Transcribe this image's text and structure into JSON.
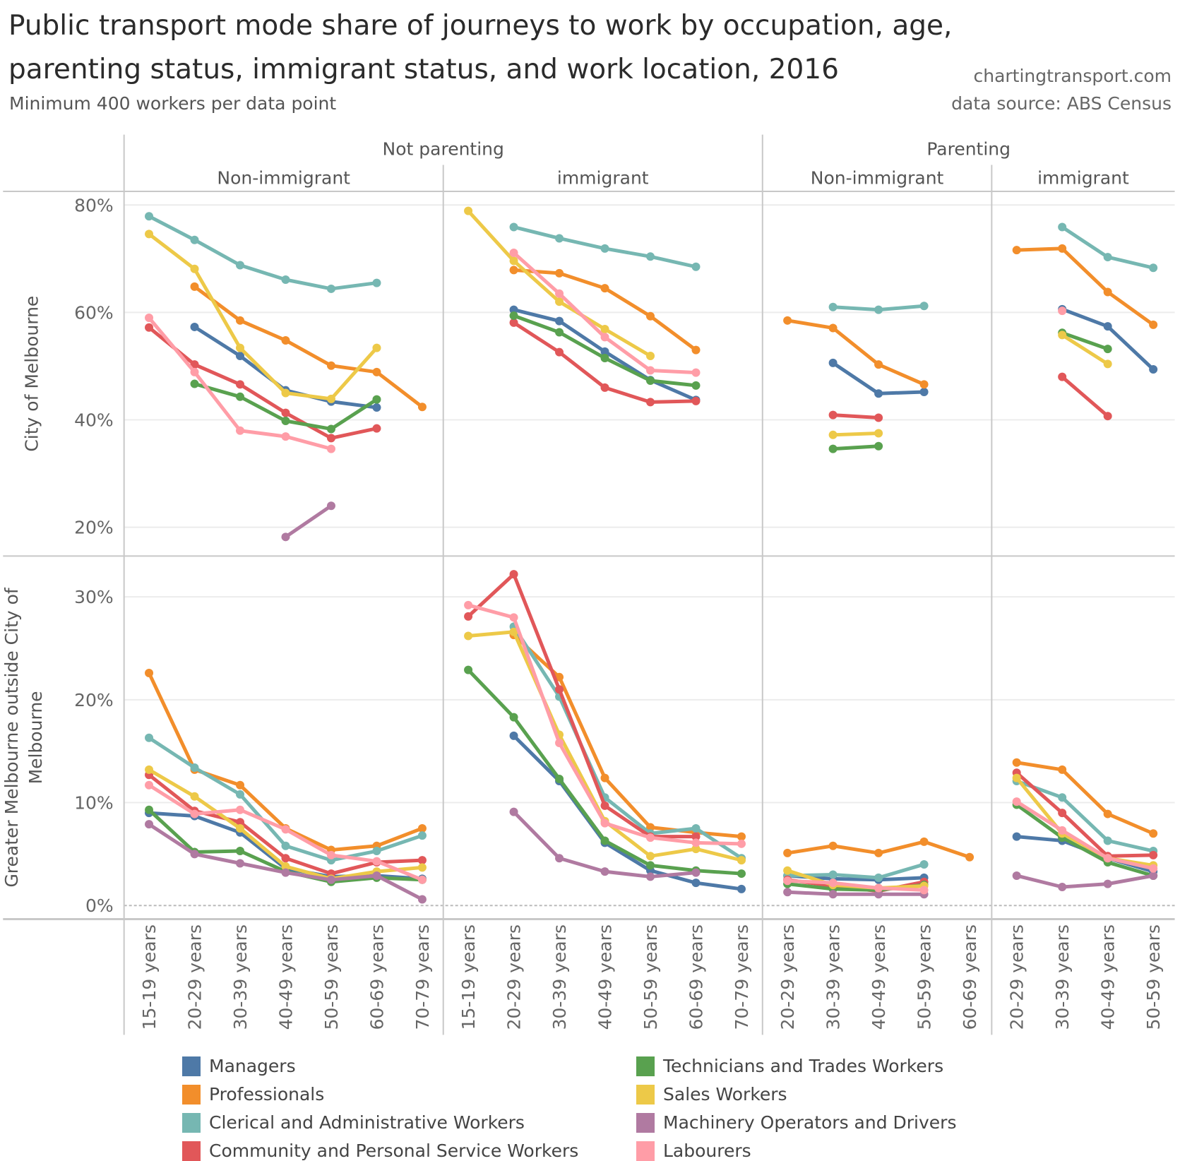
{
  "header": {
    "title": "Public transport mode share of journeys to work by occupation, age, parenting status, immigrant status, and work location, 2016",
    "subtitle": "Minimum 400 workers per data point",
    "credit_site": "chartingtransport.com",
    "credit_source": "data source: ABS Census"
  },
  "chart_data": {
    "type": "line",
    "title": "Public transport mode share of journeys to work by occupation, age, parenting status, immigrant status, and work location, 2016",
    "subtitle": "Minimum 400 workers per data point",
    "column_groups": [
      {
        "label": "Not parenting",
        "subgroups": [
          "Non-immigrant",
          "immigrant"
        ]
      },
      {
        "label": "Parenting",
        "subgroups": [
          "Non-immigrant",
          "immigrant"
        ]
      }
    ],
    "rows": [
      {
        "label": "City of Melbourne",
        "ylim": [
          15,
          82
        ],
        "ticks": [
          20,
          40,
          60,
          80
        ],
        "tick_labels": [
          "20%",
          "40%",
          "60%",
          "80%"
        ]
      },
      {
        "label": "Greater Melbourne outside City of Melbourne",
        "ylim": [
          -0.5,
          33
        ],
        "ticks": [
          0,
          10,
          20,
          30
        ],
        "tick_labels": [
          "0%",
          "10%",
          "20%",
          "30%"
        ]
      }
    ],
    "panel_categories": [
      [
        "15-19 years",
        "20-29 years",
        "30-39 years",
        "40-49 years",
        "50-59 years",
        "60-69 years",
        "70-79 years"
      ],
      [
        "15-19 years",
        "20-29 years",
        "30-39 years",
        "40-49 years",
        "50-59 years",
        "60-69 years",
        "70-79 years"
      ],
      [
        "20-29 years",
        "30-39 years",
        "40-49 years",
        "50-59 years",
        "60-69 years"
      ],
      [
        "20-29 years",
        "30-39 years",
        "40-49 years",
        "50-59 years"
      ]
    ],
    "series": [
      {
        "name": "Managers",
        "color": "#4e79a7"
      },
      {
        "name": "Professionals",
        "color": "#f28e2b"
      },
      {
        "name": "Clerical and Administrative Workers",
        "color": "#76b7b2"
      },
      {
        "name": "Community and Personal Service Workers",
        "color": "#e15759"
      },
      {
        "name": "Technicians and Trades Workers",
        "color": "#59a14f"
      },
      {
        "name": "Sales Workers",
        "color": "#edc948"
      },
      {
        "name": "Machinery Operators and Drivers",
        "color": "#b07aa1"
      },
      {
        "name": "Labourers",
        "color": "#ff9da7"
      }
    ],
    "values": {
      "row0": [
        {
          "Managers": [
            null,
            57.3,
            51.9,
            45.5,
            43.4,
            42.3,
            null
          ],
          "Professionals": [
            null,
            64.8,
            58.5,
            54.8,
            50.1,
            48.9,
            42.4
          ],
          "Clerical and Administrative Workers": [
            77.9,
            73.5,
            68.8,
            66.1,
            64.4,
            65.5,
            null
          ],
          "Community and Personal Service Workers": [
            57.2,
            50.3,
            46.6,
            41.3,
            36.6,
            38.4,
            null
          ],
          "Technicians and Trades Workers": [
            null,
            46.7,
            44.3,
            39.8,
            38.3,
            43.8,
            null
          ],
          "Sales Workers": [
            74.6,
            68.1,
            53.4,
            45.0,
            43.9,
            53.4,
            null
          ],
          "Machinery Operators and Drivers": [
            null,
            null,
            null,
            18.2,
            24.0,
            null,
            null
          ],
          "Labourers": [
            59.0,
            48.9,
            38.0,
            36.9,
            34.6,
            null,
            null
          ]
        },
        {
          "Managers": [
            null,
            60.5,
            58.4,
            52.7,
            47.4,
            43.7,
            null
          ],
          "Professionals": [
            null,
            67.9,
            67.3,
            64.5,
            59.3,
            53.0,
            null
          ],
          "Clerical and Administrative Workers": [
            null,
            75.9,
            73.8,
            71.9,
            70.4,
            68.5,
            null
          ],
          "Community and Personal Service Workers": [
            null,
            58.1,
            52.6,
            46.0,
            43.3,
            43.5,
            null
          ],
          "Technicians and Trades Workers": [
            null,
            59.4,
            56.3,
            51.5,
            47.3,
            46.4,
            null
          ],
          "Sales Workers": [
            78.9,
            69.6,
            62.0,
            56.9,
            51.9,
            null,
            null
          ],
          "Machinery Operators and Drivers": [
            null,
            null,
            null,
            null,
            null,
            null,
            null
          ],
          "Labourers": [
            null,
            71.1,
            63.5,
            55.4,
            49.2,
            48.8,
            null
          ]
        },
        {
          "Managers": [
            null,
            50.6,
            44.9,
            45.2,
            null
          ],
          "Professionals": [
            58.5,
            57.1,
            50.3,
            46.6,
            null
          ],
          "Clerical and Administrative Workers": [
            null,
            61.0,
            60.5,
            61.2,
            null
          ],
          "Community and Personal Service Workers": [
            null,
            40.9,
            40.4,
            null,
            null
          ],
          "Technicians and Trades Workers": [
            null,
            34.6,
            35.1,
            null,
            null
          ],
          "Sales Workers": [
            null,
            37.2,
            37.5,
            null,
            null
          ],
          "Machinery Operators and Drivers": [
            null,
            null,
            null,
            null,
            null
          ],
          "Labourers": [
            null,
            null,
            null,
            null,
            null
          ]
        },
        {
          "Managers": [
            null,
            60.6,
            57.4,
            49.4
          ],
          "Professionals": [
            71.6,
            71.9,
            63.8,
            57.7
          ],
          "Clerical and Administrative Workers": [
            null,
            75.9,
            70.3,
            68.3
          ],
          "Community and Personal Service Workers": [
            null,
            48.0,
            40.7,
            null
          ],
          "Technicians and Trades Workers": [
            null,
            56.2,
            53.2,
            null
          ],
          "Sales Workers": [
            null,
            55.8,
            50.4,
            null
          ],
          "Machinery Operators and Drivers": [
            null,
            null,
            null,
            null
          ],
          "Labourers": [
            null,
            60.3,
            null,
            null
          ]
        }
      ],
      "row1": [
        {
          "Managers": [
            9.0,
            8.7,
            7.1,
            3.6,
            2.8,
            2.9,
            2.6
          ],
          "Professionals": [
            22.6,
            13.2,
            11.7,
            7.5,
            5.4,
            5.8,
            7.5
          ],
          "Clerical and Administrative Workers": [
            16.3,
            13.4,
            10.8,
            5.8,
            4.4,
            5.3,
            6.8
          ],
          "Community and Personal Service Workers": [
            12.7,
            9.2,
            8.1,
            4.6,
            3.1,
            4.2,
            4.4
          ],
          "Technicians and Trades Workers": [
            9.3,
            5.2,
            5.3,
            3.3,
            2.3,
            2.7,
            2.5
          ],
          "Sales Workers": [
            13.2,
            10.6,
            7.5,
            3.8,
            2.6,
            3.3,
            3.7
          ],
          "Machinery Operators and Drivers": [
            7.9,
            5.0,
            4.1,
            3.2,
            2.5,
            2.9,
            0.6
          ],
          "Labourers": [
            11.7,
            8.9,
            9.3,
            7.4,
            4.9,
            4.3,
            2.5
          ]
        },
        {
          "Managers": [
            null,
            16.5,
            12.1,
            6.1,
            3.4,
            2.2,
            1.6
          ],
          "Professionals": [
            null,
            26.3,
            22.2,
            12.4,
            7.6,
            7.1,
            6.7
          ],
          "Clerical and Administrative Workers": [
            null,
            27.1,
            20.3,
            10.5,
            7.0,
            7.5,
            4.6
          ],
          "Community and Personal Service Workers": [
            28.1,
            32.2,
            21.0,
            9.7,
            6.7,
            6.7,
            null
          ],
          "Technicians and Trades Workers": [
            22.9,
            18.3,
            12.3,
            6.3,
            3.9,
            3.4,
            3.1
          ],
          "Sales Workers": [
            26.2,
            26.6,
            16.6,
            8.2,
            4.8,
            5.5,
            4.4
          ],
          "Machinery Operators and Drivers": [
            null,
            9.1,
            4.6,
            3.3,
            2.8,
            3.2,
            null
          ],
          "Labourers": [
            29.2,
            28.0,
            15.8,
            8.0,
            6.6,
            6.1,
            6.0
          ]
        },
        {
          "Managers": [
            2.9,
            2.6,
            2.5,
            2.7,
            null
          ],
          "Professionals": [
            5.1,
            5.8,
            5.1,
            6.2,
            4.7
          ],
          "Clerical and Administrative Workers": [
            2.9,
            3.0,
            2.7,
            4.0,
            null
          ],
          "Community and Personal Service Workers": [
            2.5,
            1.9,
            1.4,
            2.3,
            null
          ],
          "Technicians and Trades Workers": [
            2.1,
            1.6,
            1.5,
            2.0,
            null
          ],
          "Sales Workers": [
            3.4,
            2.0,
            1.7,
            1.9,
            null
          ],
          "Machinery Operators and Drivers": [
            1.3,
            1.1,
            1.1,
            1.1,
            null
          ],
          "Labourers": [
            2.4,
            2.2,
            1.7,
            1.5,
            null
          ]
        },
        {
          "Managers": [
            6.7,
            6.3,
            4.6,
            3.3
          ],
          "Professionals": [
            13.9,
            13.2,
            8.9,
            7.0
          ],
          "Clerical and Administrative Workers": [
            12.1,
            10.5,
            6.3,
            5.3
          ],
          "Community and Personal Service Workers": [
            12.9,
            9.0,
            4.8,
            4.9
          ],
          "Technicians and Trades Workers": [
            9.8,
            6.6,
            4.2,
            2.9
          ],
          "Sales Workers": [
            12.4,
            7.0,
            4.6,
            3.9
          ],
          "Machinery Operators and Drivers": [
            2.9,
            1.8,
            2.1,
            2.9
          ],
          "Labourers": [
            10.1,
            7.3,
            4.6,
            3.6
          ]
        }
      ]
    },
    "grid": true,
    "zero_line": "dashed",
    "legend_position": "bottom"
  }
}
